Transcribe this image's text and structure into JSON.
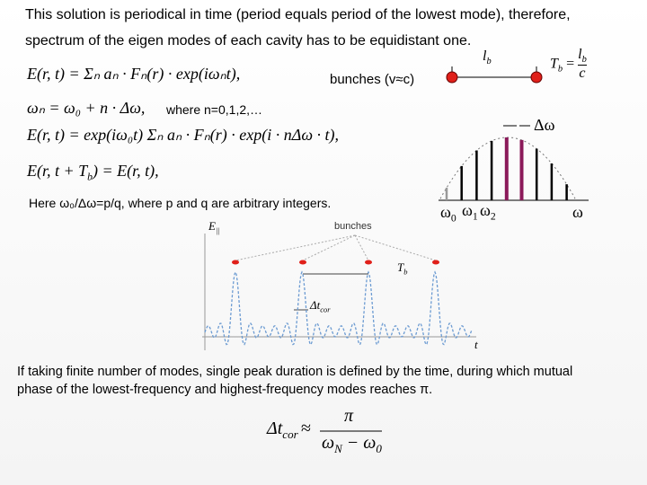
{
  "header": {
    "line1": "This solution is periodical in time (period equals period of the lowest mode), therefore,",
    "line2": "spectrum of the eigen modes of each cavity has to be equidistant one."
  },
  "equations": [
    "E(r, t) = Σₙ aₙ · Fₙ(r) · exp(iωₙt),",
    "ωₙ = ω₀ + n · Δω,",
    "E(r, t) = exp(iω₀t) Σₙ aₙ · Fₙ(r) · exp(i · nΔω · t),",
    {
      "before": "E(r, t + T",
      "sub": "b",
      "after": ") = E(r, t),"
    }
  ],
  "where": "where n=0,1,2,…",
  "note": "Here ω₀/Δω=p/q, where p and q are arbitrary integers.",
  "bunch_diagram": {
    "label": "bunches (v≈c)",
    "spacing": {
      "main": "l",
      "sub": "b"
    },
    "period": {
      "lhs": "T",
      "lhs_sub": "b",
      "eq": "=",
      "num": "l",
      "num_sub": "b",
      "den": "c"
    }
  },
  "spectrum": {
    "spacing": "Δω",
    "ticks": [
      {
        "main": "ω",
        "sub": "0"
      },
      {
        "main": "ω",
        "sub": "1"
      },
      {
        "main": "ω",
        "sub": "2"
      }
    ],
    "axis": "ω"
  },
  "field_plot": {
    "field": {
      "main": "E",
      "sub": "||"
    },
    "bunches": "bunches",
    "period": {
      "main": "T",
      "sub": "b"
    },
    "duration": {
      "main": "Δt",
      "sub": "cor"
    },
    "axis": "t"
  },
  "conclusion": {
    "line1": "If taking finite number of modes, single peak duration is defined by the time, during which mutual",
    "line2": "phase of the lowest-frequency and highest-frequency modes reaches π."
  },
  "formula": {
    "lhs": {
      "main": "Δt",
      "sub": "cor"
    },
    "op": "≈",
    "num": "π",
    "den": {
      "a": "ω",
      "a_sub": "N",
      "minus": " − ω",
      "b_sub": "0"
    }
  }
}
